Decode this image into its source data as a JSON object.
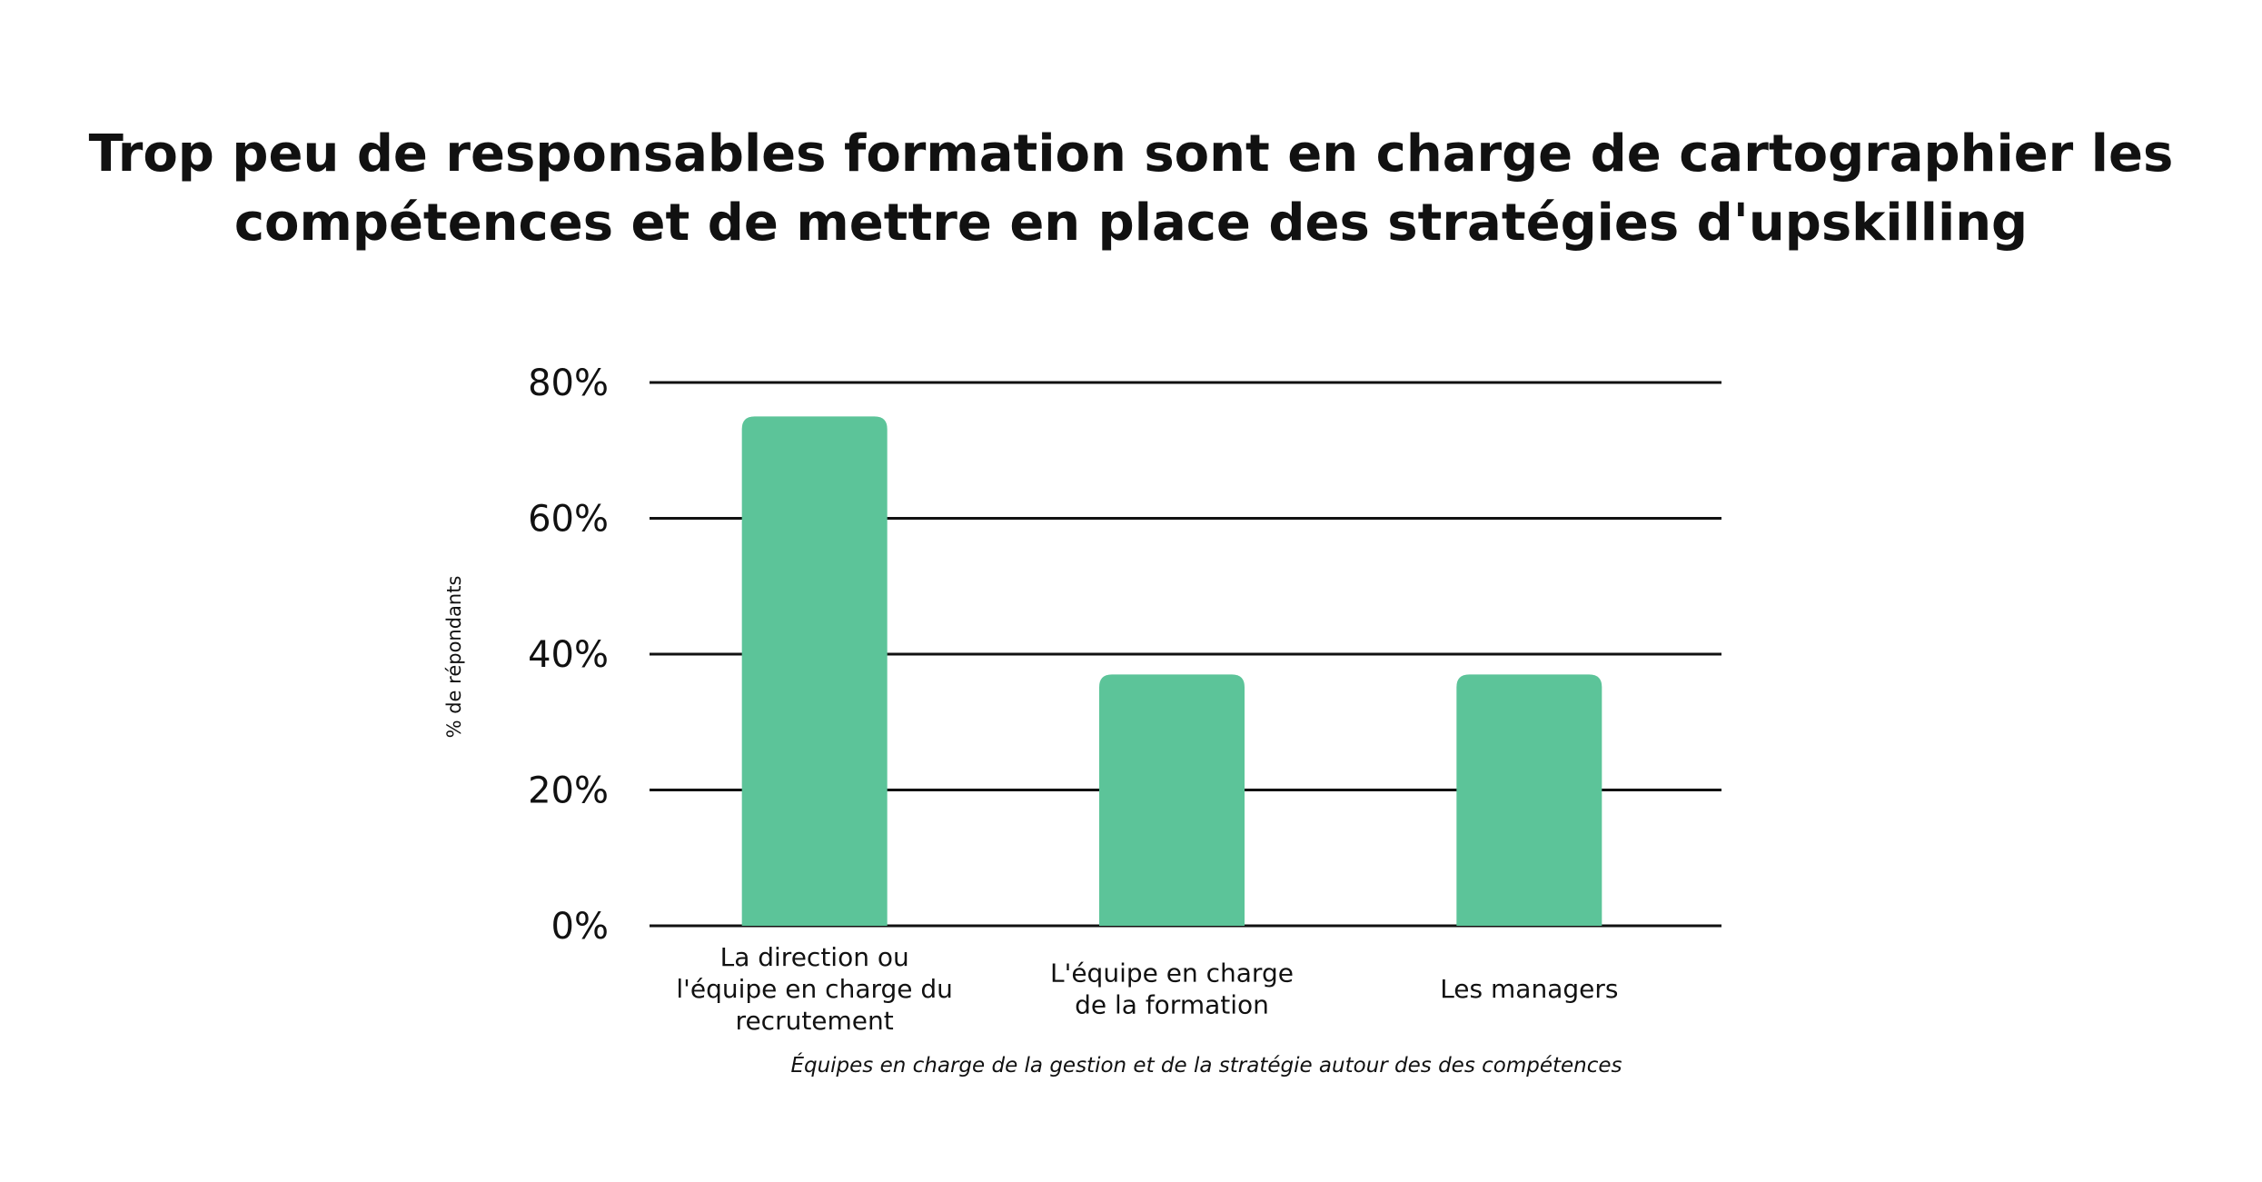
{
  "chart_data": {
    "type": "bar",
    "title_lines": [
      "Trop peu de responsables formation sont en charge de cartographier les",
      "compétences et de mettre en place des stratégies d'upskilling"
    ],
    "categories": [
      [
        "La direction ou",
        "l'équipe en charge du",
        "recrutement"
      ],
      [
        "L'équipe en charge",
        "de la formation"
      ],
      [
        "Les managers"
      ]
    ],
    "values": [
      75,
      37,
      37
    ],
    "ylim": [
      0,
      80
    ],
    "yticks": [
      0,
      20,
      40,
      60,
      80
    ],
    "ytick_labels": [
      "0%",
      "20%",
      "40%",
      "60%",
      "80%"
    ],
    "ylabel": "% de répondants",
    "xlabel": "Équipes en charge de la gestion et de la stratégie autour des des compétences",
    "grid": true,
    "bar_color": "#5cc499",
    "grid_color": "#111111"
  }
}
